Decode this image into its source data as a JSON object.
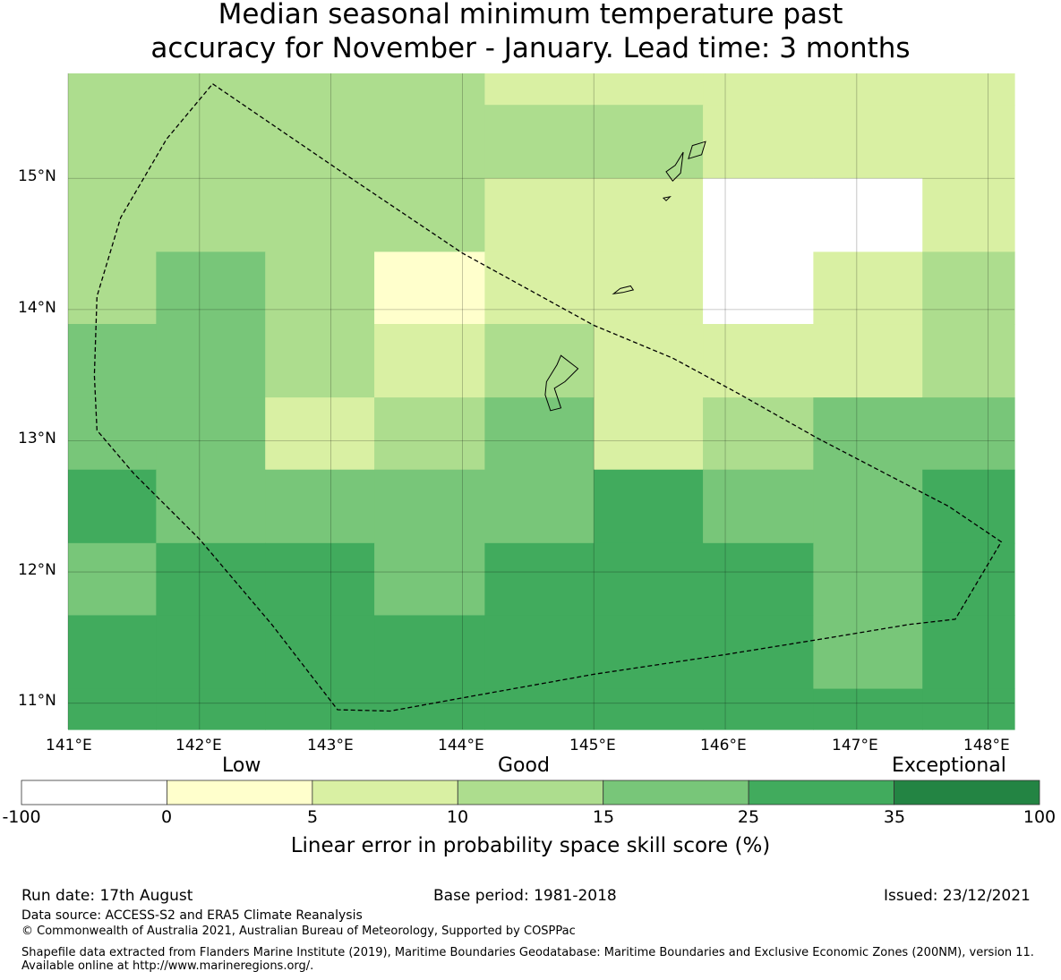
{
  "title": {
    "line1": "Median seasonal minimum temperature past",
    "line2": "accuracy for November - January. Lead time: 3 months"
  },
  "map": {
    "lon_range": [
      141,
      148.2
    ],
    "lat_range": [
      10.8,
      15.8
    ],
    "lon_ticks": [
      "141°E",
      "142°E",
      "143°E",
      "144°E",
      "145°E",
      "146°E",
      "147°E",
      "148°E"
    ],
    "lat_ticks": [
      "15°N",
      "14°N",
      "13°N",
      "12°N",
      "11°N"
    ],
    "grid_cols_lon_edges": [
      141,
      141.67,
      142.5,
      143.33,
      144.17,
      145,
      145.83,
      146.67,
      147.5,
      148.2
    ],
    "grid_rows_lat_edges": [
      15.8,
      15.56,
      15.0,
      14.44,
      13.89,
      13.33,
      12.78,
      12.22,
      11.67,
      11.11,
      10.8
    ],
    "cells": [
      [
        3,
        3,
        3,
        3,
        2,
        2,
        2,
        2,
        2
      ],
      [
        3,
        3,
        3,
        3,
        3,
        3,
        2,
        2,
        2
      ],
      [
        3,
        3,
        3,
        3,
        2,
        2,
        0,
        0,
        2
      ],
      [
        3,
        4,
        3,
        1,
        2,
        2,
        0,
        2,
        3
      ],
      [
        4,
        4,
        3,
        2,
        3,
        2,
        2,
        2,
        3
      ],
      [
        4,
        4,
        2,
        3,
        4,
        2,
        3,
        4,
        4
      ],
      [
        5,
        4,
        4,
        4,
        4,
        5,
        4,
        4,
        5
      ],
      [
        4,
        5,
        5,
        4,
        5,
        5,
        5,
        4,
        5
      ],
      [
        5,
        5,
        5,
        5,
        5,
        5,
        5,
        4,
        5
      ],
      [
        5,
        5,
        5,
        5,
        5,
        5,
        5,
        5,
        5
      ]
    ],
    "boundary_lonlat": [
      [
        142.1,
        15.72
      ],
      [
        143.05,
        15.07
      ],
      [
        144.0,
        14.43
      ],
      [
        145.0,
        13.88
      ],
      [
        145.6,
        13.63
      ],
      [
        146.1,
        13.36
      ],
      [
        146.7,
        13.02
      ],
      [
        147.2,
        12.76
      ],
      [
        147.7,
        12.5
      ],
      [
        148.1,
        12.23
      ],
      [
        147.75,
        11.64
      ],
      [
        147.4,
        11.6
      ],
      [
        146.8,
        11.5
      ],
      [
        146.0,
        11.37
      ],
      [
        145.0,
        11.22
      ],
      [
        144.0,
        11.04
      ],
      [
        143.45,
        10.94
      ],
      [
        143.05,
        10.95
      ],
      [
        142.55,
        11.6
      ],
      [
        142.0,
        12.25
      ],
      [
        141.5,
        12.75
      ],
      [
        141.22,
        13.08
      ],
      [
        141.2,
        13.5
      ],
      [
        141.22,
        14.1
      ],
      [
        141.4,
        14.7
      ],
      [
        141.75,
        15.3
      ],
      [
        142.1,
        15.72
      ]
    ],
    "islands_lonlat": [
      [
        [
          144.75,
          13.65
        ],
        [
          144.88,
          13.55
        ],
        [
          144.78,
          13.45
        ],
        [
          144.7,
          13.4
        ],
        [
          144.75,
          13.25
        ],
        [
          144.67,
          13.23
        ],
        [
          144.63,
          13.35
        ],
        [
          144.64,
          13.45
        ],
        [
          144.72,
          13.58
        ],
        [
          144.75,
          13.65
        ]
      ],
      [
        [
          145.2,
          14.16
        ],
        [
          145.28,
          14.18
        ],
        [
          145.3,
          14.15
        ],
        [
          145.22,
          14.13
        ],
        [
          145.15,
          14.12
        ],
        [
          145.2,
          14.16
        ]
      ],
      [
        [
          145.62,
          15.1
        ],
        [
          145.68,
          15.2
        ],
        [
          145.66,
          15.04
        ],
        [
          145.6,
          14.98
        ],
        [
          145.55,
          15.05
        ],
        [
          145.62,
          15.1
        ]
      ],
      [
        [
          145.75,
          15.25
        ],
        [
          145.85,
          15.28
        ],
        [
          145.82,
          15.18
        ],
        [
          145.72,
          15.15
        ],
        [
          145.75,
          15.25
        ]
      ],
      [
        [
          145.53,
          14.85
        ],
        [
          145.58,
          14.86
        ],
        [
          145.55,
          14.83
        ],
        [
          145.53,
          14.85
        ]
      ]
    ]
  },
  "colorbar": {
    "bands": [
      "Low",
      "Good",
      "Exceptional"
    ],
    "ticks": [
      "-100",
      "0",
      "5",
      "10",
      "15",
      "25",
      "35",
      "100"
    ],
    "colors": [
      "#ffffff",
      "#ffffcc",
      "#d9f0a3",
      "#addd8e",
      "#78c679",
      "#41ab5d",
      "#238443"
    ],
    "label": "Linear error in probability space skill score (%)"
  },
  "footer": {
    "run_date": "Run date: 17th August",
    "base_period": "Base period: 1981-2018",
    "issued": "Issued: 23/12/2021",
    "data_source": "Data source: ACCESS-S2 and ERA5 Climate Reanalysis",
    "copyright": "© Commonwealth of Australia 2021, Australian Bureau of Meteorology, Supported by COSPPac",
    "shapefile": "Shapefile data extracted from Flanders Marine Institute (2019), Maritime Boundaries Geodatabase: Maritime Boundaries and Exclusive Economic Zones (200NM), version 11. Available online at http://www.marineregions.org/."
  }
}
